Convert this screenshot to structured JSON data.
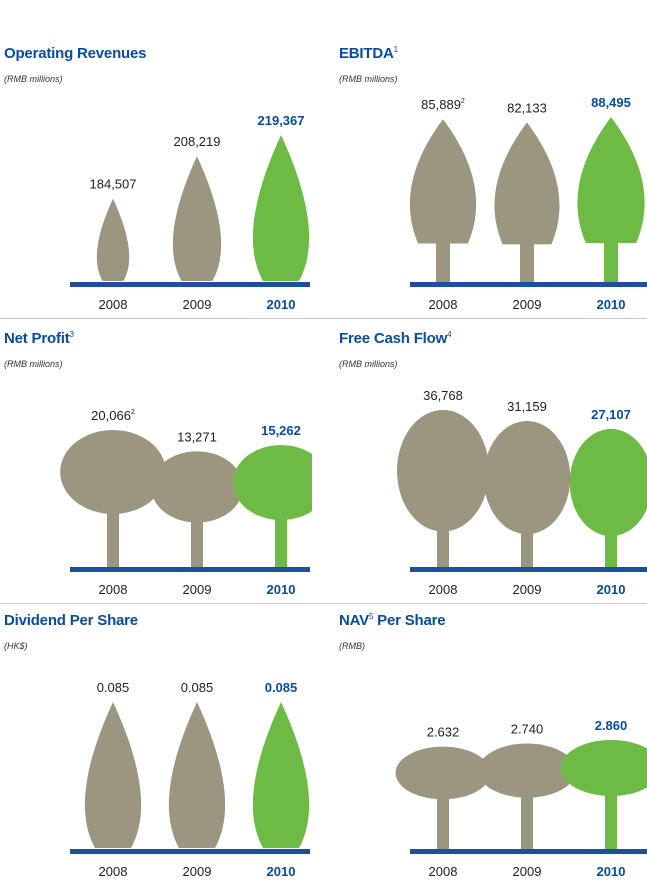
{
  "colors": {
    "past": "#9b9680",
    "current": "#6dbb45",
    "accent": "#0a4b9b",
    "ground": "#1f4e9c"
  },
  "chart_data": [
    {
      "type": "pictograph",
      "title": "Operating Revenues",
      "footnote": "",
      "unit": "(RMB millions)",
      "shape": "cypress",
      "categories": [
        "2008",
        "2009",
        "2010"
      ],
      "values": [
        184507,
        208219,
        219367
      ],
      "labels": [
        "184,507",
        "208,219",
        "219,367"
      ],
      "label_notes": [
        "",
        "",
        ""
      ]
    },
    {
      "type": "pictograph",
      "title": "EBITDA",
      "footnote": "1",
      "unit": "(RMB millions)",
      "shape": "redwood",
      "categories": [
        "2008",
        "2009",
        "2010"
      ],
      "values": [
        85889,
        82133,
        88495
      ],
      "labels": [
        "85,889",
        "82,133",
        "88,495"
      ],
      "label_notes": [
        "2",
        "",
        ""
      ]
    },
    {
      "type": "pictograph",
      "title": "Net Profit",
      "footnote": "3",
      "unit": "(RMB millions)",
      "shape": "oak",
      "categories": [
        "2008",
        "2009",
        "2010"
      ],
      "values": [
        20066,
        13271,
        15262
      ],
      "labels": [
        "20,066",
        "13,271",
        "15,262"
      ],
      "label_notes": [
        "2",
        "",
        ""
      ]
    },
    {
      "type": "pictograph",
      "title": "Free Cash Flow",
      "footnote": "4",
      "unit": "(RMB millions)",
      "shape": "elm",
      "categories": [
        "2008",
        "2009",
        "2010"
      ],
      "values": [
        36768,
        31159,
        27107
      ],
      "labels": [
        "36,768",
        "31,159",
        "27,107"
      ],
      "label_notes": [
        "",
        "",
        ""
      ]
    },
    {
      "type": "pictograph",
      "title": "Dividend Per Share",
      "footnote": "",
      "unit": "(HK$)",
      "shape": "cypress",
      "categories": [
        "2008",
        "2009",
        "2010"
      ],
      "values": [
        0.085,
        0.085,
        0.085
      ],
      "labels": [
        "0.085",
        "0.085",
        "0.085"
      ],
      "label_notes": [
        "",
        "",
        ""
      ]
    },
    {
      "type": "pictograph",
      "title": "NAV",
      "title_suffix": " Per Share",
      "footnote": "5",
      "unit": "(RMB)",
      "shape": "palm",
      "categories": [
        "2008",
        "2009",
        "2010"
      ],
      "values": [
        2.632,
        2.74,
        2.86
      ],
      "labels": [
        "2.632",
        "2.740",
        "2.860"
      ],
      "label_notes": [
        "",
        "",
        ""
      ]
    }
  ]
}
